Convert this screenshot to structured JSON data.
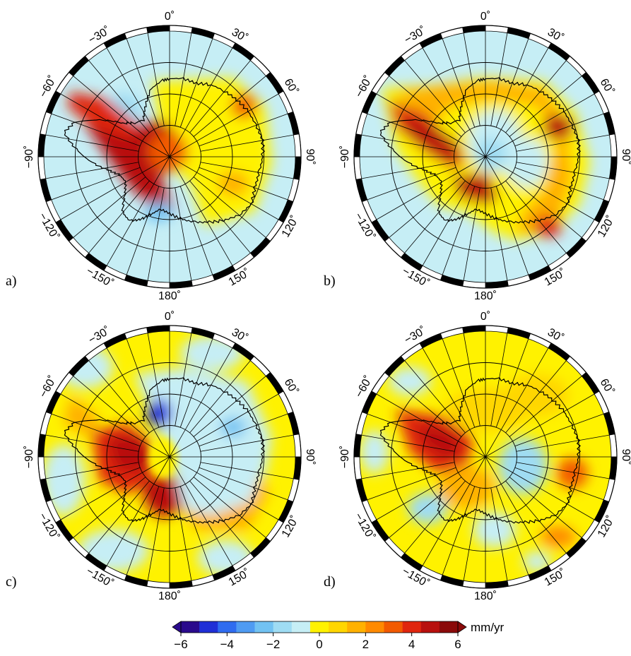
{
  "panels": [
    {
      "label": "a)",
      "id": "a"
    },
    {
      "label": "b)",
      "id": "b"
    },
    {
      "label": "c)",
      "id": "c"
    },
    {
      "label": "d)",
      "id": "d"
    }
  ],
  "longitude_labels": [
    {
      "lon": 0,
      "text": "0˚"
    },
    {
      "lon": 30,
      "text": "30˚"
    },
    {
      "lon": 60,
      "text": "60˚"
    },
    {
      "lon": 90,
      "text": "90˚"
    },
    {
      "lon": 120,
      "text": "120˚"
    },
    {
      "lon": 150,
      "text": "150˚"
    },
    {
      "lon": 180,
      "text": "180˚"
    },
    {
      "lon": -150,
      "text": "−150˚"
    },
    {
      "lon": -120,
      "text": "−120˚"
    },
    {
      "lon": -90,
      "text": "−90˚"
    },
    {
      "lon": -60,
      "text": "−60˚"
    },
    {
      "lon": -30,
      "text": "−30˚"
    }
  ],
  "colorbar": {
    "unit": "mm/yr",
    "min": -6,
    "max": 6,
    "step": 1,
    "tick_values": [
      -6,
      -4,
      -2,
      0,
      2,
      4,
      6
    ],
    "tick_labels": [
      "−6",
      "−4",
      "−2",
      "0",
      "2",
      "4",
      "6"
    ],
    "colors": [
      "#2a0a8c",
      "#1f2fd6",
      "#2f6cf0",
      "#4f9bf2",
      "#72c2f2",
      "#9fdcf3",
      "#c6eef5",
      "#fff200",
      "#ffd600",
      "#ffb100",
      "#ff8a00",
      "#f25a00",
      "#e0260e",
      "#b8100e",
      "#8a0a0a"
    ]
  },
  "colors": {
    "ocean_bg": "#c6eef5",
    "light_blue": "#9fdcf3",
    "mid_blue": "#72c2f2",
    "blue": "#4f9bf2",
    "deep_blue": "#1f2fd6",
    "yellow": "#fff200",
    "gold": "#ffd600",
    "orange": "#ffb100",
    "dark_orange": "#ff8a00",
    "red_orange": "#f25a00",
    "red": "#e0260e",
    "dark_red": "#b8100e",
    "frame": "#000000",
    "grid": "#000000"
  }
}
